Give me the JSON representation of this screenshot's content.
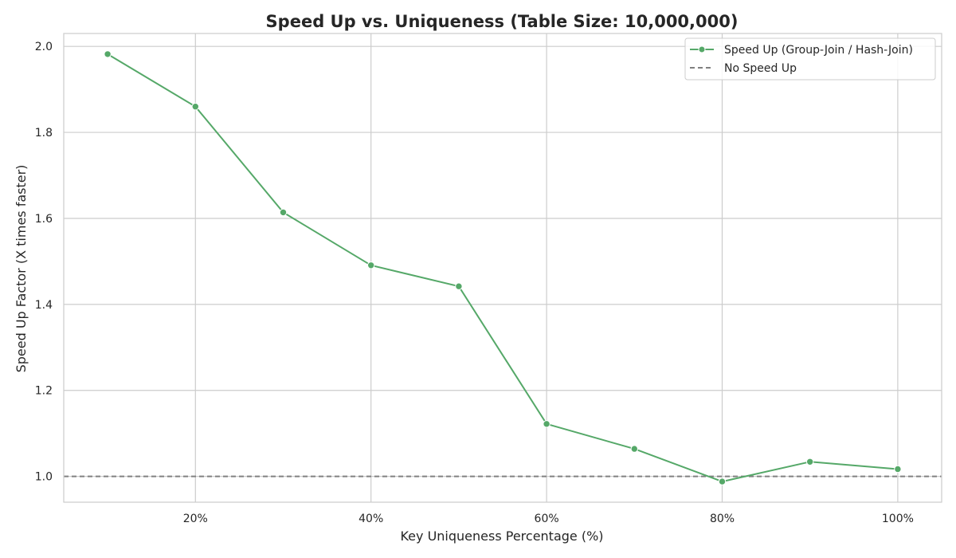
{
  "chart_data": {
    "type": "line",
    "title": "Speed Up vs. Uniqueness (Table Size: 10,000,000)",
    "xlabel": "Key Uniqueness Percentage (%)",
    "ylabel": "Speed Up Factor (X times faster)",
    "x": [
      10,
      20,
      30,
      40,
      50,
      60,
      70,
      80,
      90,
      100
    ],
    "xlim": [
      5,
      105
    ],
    "ylim": [
      0.94,
      2.03
    ],
    "x_ticks": [
      20,
      40,
      60,
      80,
      100
    ],
    "x_tick_labels": [
      "20%",
      "40%",
      "60%",
      "80%",
      "100%"
    ],
    "y_ticks": [
      1.0,
      1.2,
      1.4,
      1.6,
      1.8,
      2.0
    ],
    "y_tick_labels": [
      "1.0",
      "1.2",
      "1.4",
      "1.6",
      "1.8",
      "2.0"
    ],
    "grid": true,
    "legend_position": "top-right",
    "series": [
      {
        "name": "Speed Up (Group-Join / Hash-Join)",
        "values": [
          1.982,
          1.86,
          1.614,
          1.491,
          1.442,
          1.122,
          1.064,
          0.988,
          1.034,
          1.017
        ],
        "color": "#55a868",
        "style": "solid-with-markers"
      }
    ],
    "reference_lines": [
      {
        "name": "No Speed Up",
        "y": 1.0,
        "color": "#808080",
        "style": "dashed"
      }
    ]
  }
}
